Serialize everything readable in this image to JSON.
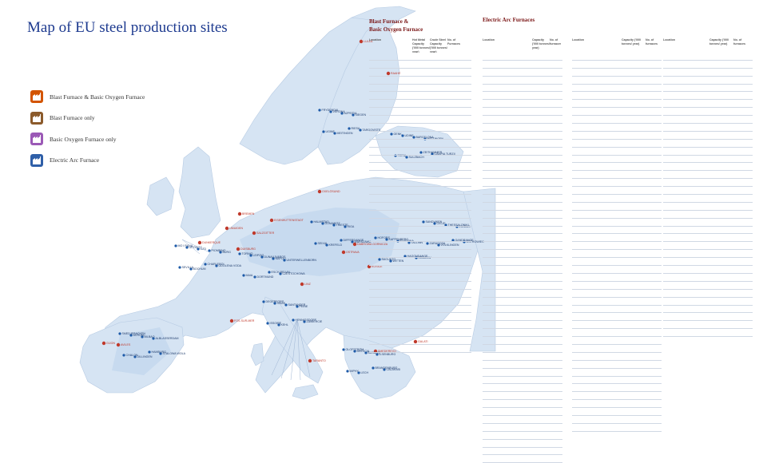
{
  "title": "Map of EU steel production sites",
  "legend": [
    {
      "label": "Blast Furnace & Basic Oxygen Furnace",
      "color": "#d35400",
      "icon": "factory-icon"
    },
    {
      "label": "Blast Furnace only",
      "color": "#8b5a2b",
      "icon": "factory-icon"
    },
    {
      "label": "Basic Oxygen Furnace only",
      "color": "#9b59b6",
      "icon": "factory-icon"
    },
    {
      "label": "Electric Arc Furnace",
      "color": "#2f5fa8",
      "icon": "factory-icon"
    }
  ],
  "colors": {
    "land": "#d6e4f3",
    "land_dark": "#c1d5ec",
    "sea": "#ffffff",
    "site_dot": "#1d5aa8",
    "title": "#1d3a8f",
    "accent": "#c0392b"
  },
  "bf_panel": {
    "title_line1": "Blast Furnace &",
    "title_line2": "Basic Oxygen Furnace",
    "headers": [
      "Location",
      "Hot Metal Capacity ('000 tonnes/ year)",
      "Crude Steel Capacity ('000 tonnes/ year)",
      "No. of Furnaces"
    ]
  },
  "eaf_panel": {
    "title": "Electric Arc Furnaces",
    "headers": [
      "Location",
      "Capacity ('000 tonnes/ year)",
      "No. of furnaces"
    ]
  },
  "map_labels_red": [
    "LULEÅ",
    "RAAHE",
    "IJMUIDEN",
    "DUNKERQUE",
    "FOS-SUR-MER",
    "TARANTO",
    "LINZ",
    "GALATI",
    "SMEDEREVO",
    "SALZGITTER",
    "DUISBURG",
    "BREMEN",
    "EISENHÜTTENSTADT",
    "OXELÖSUND",
    "KOSICE",
    "OSTRAVA",
    "DABROWA GORNICZA",
    "GIJON",
    "AVILES"
  ],
  "map_labels_blue": [
    "MO I RANA",
    "TORNIO",
    "HALMSTAD",
    "HOFORS",
    "SANDVIKEN",
    "SMEDJEBACKEN",
    "DEGERFORS",
    "OLOFSTRÖM",
    "FRYDENDAL",
    "GENK",
    "CHARLEROI",
    "ESCH-BELVAL",
    "DIFFERDANGE",
    "HAGONDANGE",
    "GANDRANGE",
    "HAMBURG",
    "HENNIGSDORF",
    "BRANDENBURG",
    "RIESA",
    "ZEITHAMMER",
    "GRÖDITZ",
    "LEIPZIG",
    "DONAWITZ",
    "KAPFENBERG",
    "CELJE",
    "ACRONI",
    "SISAK",
    "BRESCIA",
    "VERONA",
    "UDINE",
    "ODOLENA VODA",
    "CZESTOCHOWA",
    "WARSZAWA",
    "KRAKOW",
    "OSTROWIEC",
    "STALOWA WOLA",
    "ZAWIERCIE",
    "CALARASI",
    "TARGOVISTE",
    "CAMPIA TURZII",
    "OZD",
    "DUNAUJVAROS",
    "TRIESTE",
    "ELEFSINA",
    "THESSALONIKI",
    "BILBAO",
    "SANTANDER",
    "BASAURI",
    "AZPEITIA",
    "BARCELONA",
    "SEVILLA",
    "MAIA",
    "SEIXAL",
    "SAGUNTO",
    "ZARAGOZA",
    "CHALON",
    "ISSOIRE",
    "IMPHY",
    "UGINE",
    "TERNI",
    "PIOMBINO",
    "NAPOLI",
    "RIGA",
    "TALLINN",
    "VILNIUS",
    "ALBLASSERDAM",
    "PEINE",
    "ILSENBURG",
    "SIEGEN",
    "HATTINGEN",
    "BOCHUM",
    "DORTMUND",
    "KREFELD",
    "WITTEN",
    "VÖLKLINGEN",
    "DILLINGEN",
    "KEHL",
    "LECH",
    "MEITINGEN",
    "SULZBACH",
    "BURG",
    "UNTERWELLENBORN"
  ]
}
